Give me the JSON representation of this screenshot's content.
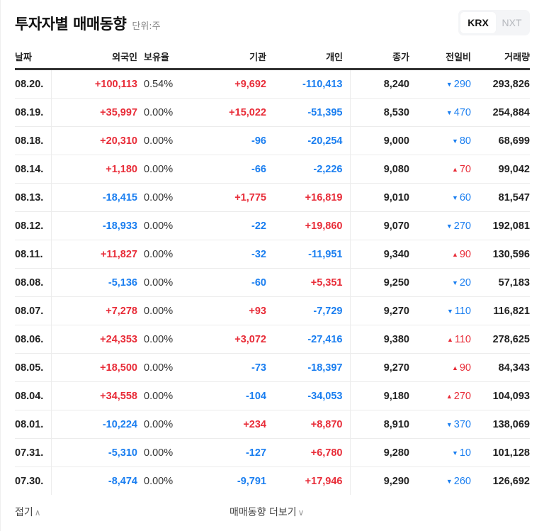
{
  "header": {
    "title": "투자자별 매매동향",
    "unit": "단위:주"
  },
  "market_toggle": {
    "options": [
      "KRX",
      "NXT"
    ],
    "selected": "KRX"
  },
  "colors": {
    "up": "#e82c38",
    "down": "#1a7ef0",
    "text": "#222222"
  },
  "table": {
    "columns": [
      "날짜",
      "외국인",
      "보유율",
      "기관",
      "개인",
      "종가",
      "전일비",
      "거래량"
    ],
    "rows": [
      {
        "date": "08.20.",
        "foreign": "+100,113",
        "ratio": "0.54%",
        "inst": "+9,692",
        "indiv": "-110,413",
        "close": "8,240",
        "chg_dir": "down",
        "chg": "290",
        "vol": "293,826"
      },
      {
        "date": "08.19.",
        "foreign": "+35,997",
        "ratio": "0.00%",
        "inst": "+15,022",
        "indiv": "-51,395",
        "close": "8,530",
        "chg_dir": "down",
        "chg": "470",
        "vol": "254,884"
      },
      {
        "date": "08.18.",
        "foreign": "+20,310",
        "ratio": "0.00%",
        "inst": "-96",
        "indiv": "-20,254",
        "close": "9,000",
        "chg_dir": "down",
        "chg": "80",
        "vol": "68,699"
      },
      {
        "date": "08.14.",
        "foreign": "+1,180",
        "ratio": "0.00%",
        "inst": "-66",
        "indiv": "-2,226",
        "close": "9,080",
        "chg_dir": "up",
        "chg": "70",
        "vol": "99,042"
      },
      {
        "date": "08.13.",
        "foreign": "-18,415",
        "ratio": "0.00%",
        "inst": "+1,775",
        "indiv": "+16,819",
        "close": "9,010",
        "chg_dir": "down",
        "chg": "60",
        "vol": "81,547"
      },
      {
        "date": "08.12.",
        "foreign": "-18,933",
        "ratio": "0.00%",
        "inst": "-22",
        "indiv": "+19,860",
        "close": "9,070",
        "chg_dir": "down",
        "chg": "270",
        "vol": "192,081"
      },
      {
        "date": "08.11.",
        "foreign": "+11,827",
        "ratio": "0.00%",
        "inst": "-32",
        "indiv": "-11,951",
        "close": "9,340",
        "chg_dir": "up",
        "chg": "90",
        "vol": "130,596"
      },
      {
        "date": "08.08.",
        "foreign": "-5,136",
        "ratio": "0.00%",
        "inst": "-60",
        "indiv": "+5,351",
        "close": "9,250",
        "chg_dir": "down",
        "chg": "20",
        "vol": "57,183"
      },
      {
        "date": "08.07.",
        "foreign": "+7,278",
        "ratio": "0.00%",
        "inst": "+93",
        "indiv": "-7,729",
        "close": "9,270",
        "chg_dir": "down",
        "chg": "110",
        "vol": "116,821"
      },
      {
        "date": "08.06.",
        "foreign": "+24,353",
        "ratio": "0.00%",
        "inst": "+3,072",
        "indiv": "-27,416",
        "close": "9,380",
        "chg_dir": "up",
        "chg": "110",
        "vol": "278,625"
      },
      {
        "date": "08.05.",
        "foreign": "+18,500",
        "ratio": "0.00%",
        "inst": "-73",
        "indiv": "-18,397",
        "close": "9,270",
        "chg_dir": "up",
        "chg": "90",
        "vol": "84,343"
      },
      {
        "date": "08.04.",
        "foreign": "+34,558",
        "ratio": "0.00%",
        "inst": "-104",
        "indiv": "-34,053",
        "close": "9,180",
        "chg_dir": "up",
        "chg": "270",
        "vol": "104,093"
      },
      {
        "date": "08.01.",
        "foreign": "-10,224",
        "ratio": "0.00%",
        "inst": "+234",
        "indiv": "+8,870",
        "close": "8,910",
        "chg_dir": "down",
        "chg": "370",
        "vol": "138,069"
      },
      {
        "date": "07.31.",
        "foreign": "-5,310",
        "ratio": "0.00%",
        "inst": "-127",
        "indiv": "+6,780",
        "close": "9,280",
        "chg_dir": "down",
        "chg": "10",
        "vol": "101,128"
      },
      {
        "date": "07.30.",
        "foreign": "-8,474",
        "ratio": "0.00%",
        "inst": "-9,791",
        "indiv": "+17,946",
        "close": "9,290",
        "chg_dir": "down",
        "chg": "260",
        "vol": "126,692"
      }
    ]
  },
  "footer": {
    "fold_label": "접기",
    "more_label": "매매동향 더보기"
  },
  "icons": {
    "up_triangle": "▲",
    "down_triangle": "▼",
    "chevron_up": "∧",
    "chevron_down": "∨"
  }
}
